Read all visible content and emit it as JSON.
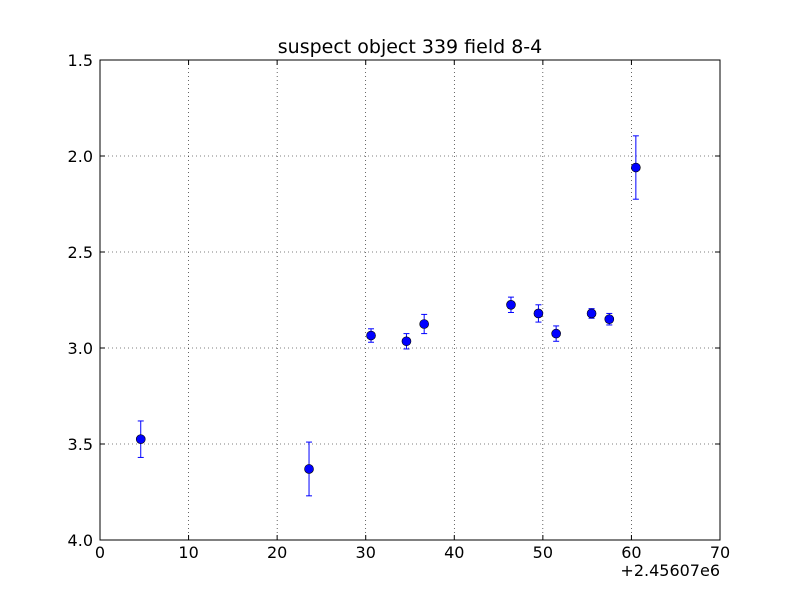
{
  "chart_data": {
    "type": "scatter",
    "title": "suspect object 339 field 8-4",
    "xlabel": "",
    "ylabel": "",
    "x_offset_label": "+2.45607e6",
    "xlim": [
      0,
      70
    ],
    "ylim": [
      1.5,
      4.0
    ],
    "y_inverted": true,
    "grid": true,
    "x_ticks": [
      "0",
      "10",
      "20",
      "30",
      "40",
      "50",
      "60",
      "70"
    ],
    "y_ticks": [
      "1.5",
      "2.0",
      "2.5",
      "3.0",
      "3.5",
      "4.0"
    ],
    "marker_color": "#0000ff",
    "errorbar_color": "#0000ff",
    "points": [
      {
        "x": 4.6,
        "y": 3.475,
        "err": 0.095
      },
      {
        "x": 23.6,
        "y": 3.63,
        "err": 0.14
      },
      {
        "x": 30.6,
        "y": 2.935,
        "err": 0.035
      },
      {
        "x": 34.6,
        "y": 2.965,
        "err": 0.04
      },
      {
        "x": 36.6,
        "y": 2.875,
        "err": 0.05
      },
      {
        "x": 46.4,
        "y": 2.775,
        "err": 0.04
      },
      {
        "x": 49.5,
        "y": 2.82,
        "err": 0.045
      },
      {
        "x": 51.5,
        "y": 2.925,
        "err": 0.04
      },
      {
        "x": 55.5,
        "y": 2.82,
        "err": 0.025
      },
      {
        "x": 57.5,
        "y": 2.85,
        "err": 0.03
      },
      {
        "x": 60.5,
        "y": 2.06,
        "err": 0.165
      }
    ]
  }
}
